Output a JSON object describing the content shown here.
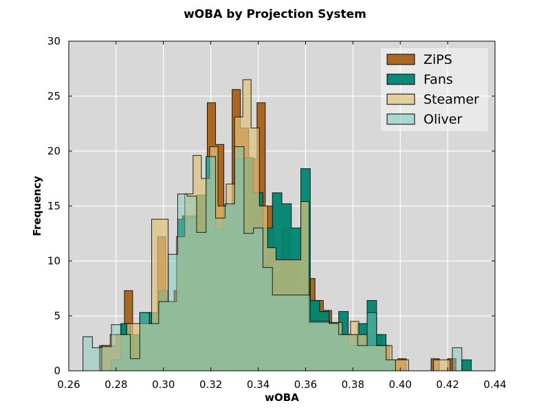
{
  "chart_data": {
    "type": "histogram",
    "title": "wOBA by Projection System",
    "xlabel": "wOBA",
    "ylabel": "Frequency",
    "xlim": [
      0.26,
      0.44
    ],
    "ylim": [
      0,
      30
    ],
    "x_ticks": [
      "0.26",
      "0.28",
      "0.30",
      "0.32",
      "0.34",
      "0.36",
      "0.38",
      "0.40",
      "0.42",
      "0.44"
    ],
    "y_ticks": [
      "0",
      "5",
      "10",
      "15",
      "20",
      "25",
      "30"
    ],
    "grid": true,
    "legend_position": "top-right",
    "background": "#d8d8d8",
    "series": [
      {
        "name": "ZiPS",
        "color": "#a6611a",
        "opacity": 0.95,
        "bins": [
          [
            0.273,
            0.2765,
            2.3
          ],
          [
            0.2765,
            0.28,
            2.3
          ],
          [
            0.28,
            0.2835,
            3.3
          ],
          [
            0.2835,
            0.287,
            7.3
          ],
          [
            0.287,
            0.2905,
            1.0
          ],
          [
            0.2905,
            0.294,
            3.3
          ],
          [
            0.294,
            0.2975,
            4.3
          ],
          [
            0.2975,
            0.301,
            12.2
          ],
          [
            0.301,
            0.3045,
            6.3
          ],
          [
            0.3045,
            0.308,
            7.3
          ],
          [
            0.308,
            0.3115,
            14.1
          ],
          [
            0.3115,
            0.315,
            14.1
          ],
          [
            0.315,
            0.3185,
            15.1
          ],
          [
            0.3185,
            0.322,
            24.4
          ],
          [
            0.322,
            0.3255,
            20.6
          ],
          [
            0.3255,
            0.329,
            12.8
          ],
          [
            0.329,
            0.3325,
            25.6
          ],
          [
            0.3325,
            0.336,
            22.1
          ],
          [
            0.336,
            0.3395,
            19.3
          ],
          [
            0.3395,
            0.343,
            24.4
          ],
          [
            0.343,
            0.3465,
            15.0
          ],
          [
            0.3465,
            0.35,
            8.6
          ],
          [
            0.35,
            0.3535,
            13.0
          ],
          [
            0.3535,
            0.357,
            9.9
          ],
          [
            0.357,
            0.3605,
            7.7
          ],
          [
            0.3605,
            0.364,
            8.4
          ],
          [
            0.364,
            0.3675,
            6.4
          ],
          [
            0.3675,
            0.371,
            5.5
          ],
          [
            0.371,
            0.3745,
            4.3
          ],
          [
            0.3745,
            0.378,
            3.3
          ],
          [
            0.378,
            0.3815,
            3.3
          ],
          [
            0.3815,
            0.385,
            1.4
          ],
          [
            0.385,
            0.3885,
            3.4
          ],
          [
            0.3885,
            0.392,
            3.3
          ],
          [
            0.392,
            0.3955,
            2.3
          ],
          [
            0.3955,
            0.399,
            1.0
          ],
          [
            0.399,
            0.4025,
            1.1
          ],
          [
            0.4025,
            0.406,
            0.0
          ],
          [
            0.406,
            0.4095,
            0.0
          ],
          [
            0.4095,
            0.413,
            0.0
          ],
          [
            0.413,
            0.4165,
            1.1
          ],
          [
            0.4165,
            0.42,
            0.0
          ],
          [
            0.42,
            0.4235,
            1.1
          ]
        ]
      },
      {
        "name": "Fans",
        "color": "#018571",
        "opacity": 0.95,
        "bins": [
          [
            0.278,
            0.282,
            1.0
          ],
          [
            0.282,
            0.286,
            4.3
          ],
          [
            0.286,
            0.29,
            3.3
          ],
          [
            0.29,
            0.294,
            5.3
          ],
          [
            0.294,
            0.298,
            5.3
          ],
          [
            0.298,
            0.302,
            7.3
          ],
          [
            0.302,
            0.306,
            6.3
          ],
          [
            0.306,
            0.31,
            13.8
          ],
          [
            0.31,
            0.314,
            14.0
          ],
          [
            0.314,
            0.318,
            16.0
          ],
          [
            0.318,
            0.322,
            19.5
          ],
          [
            0.322,
            0.326,
            12.9
          ],
          [
            0.326,
            0.33,
            15.1
          ],
          [
            0.33,
            0.334,
            19.3
          ],
          [
            0.334,
            0.338,
            19.4
          ],
          [
            0.338,
            0.342,
            16.2
          ],
          [
            0.342,
            0.346,
            13.0
          ],
          [
            0.346,
            0.35,
            16.2
          ],
          [
            0.35,
            0.354,
            15.2
          ],
          [
            0.354,
            0.358,
            13.0
          ],
          [
            0.358,
            0.362,
            18.4
          ],
          [
            0.362,
            0.366,
            6.4
          ],
          [
            0.366,
            0.37,
            5.4
          ],
          [
            0.37,
            0.374,
            4.4
          ],
          [
            0.374,
            0.378,
            5.4
          ],
          [
            0.378,
            0.382,
            2.3
          ],
          [
            0.382,
            0.386,
            4.3
          ],
          [
            0.386,
            0.39,
            6.4
          ],
          [
            0.39,
            0.394,
            3.3
          ],
          [
            0.394,
            0.398,
            1.0
          ],
          [
            0.398,
            0.402,
            0.0
          ],
          [
            0.402,
            0.406,
            0.0
          ],
          [
            0.406,
            0.41,
            0.0
          ],
          [
            0.41,
            0.414,
            0.0
          ],
          [
            0.414,
            0.418,
            0.0
          ],
          [
            0.418,
            0.422,
            0.0
          ],
          [
            0.422,
            0.426,
            0.0
          ],
          [
            0.426,
            0.43,
            1.0
          ]
        ]
      },
      {
        "name": "Steamer",
        "color": "#dfc27d",
        "opacity": 0.7,
        "bins": [
          [
            0.274,
            0.2775,
            2.3
          ],
          [
            0.2775,
            0.281,
            3.3
          ],
          [
            0.281,
            0.2845,
            3.3
          ],
          [
            0.2845,
            0.288,
            4.3
          ],
          [
            0.288,
            0.2915,
            4.3
          ],
          [
            0.2915,
            0.295,
            4.3
          ],
          [
            0.295,
            0.2985,
            13.8
          ],
          [
            0.2985,
            0.302,
            13.8
          ],
          [
            0.302,
            0.3055,
            6.3
          ],
          [
            0.3055,
            0.309,
            12.2
          ],
          [
            0.309,
            0.3125,
            16.1
          ],
          [
            0.3125,
            0.316,
            19.6
          ],
          [
            0.316,
            0.3195,
            17.5
          ],
          [
            0.3195,
            0.323,
            20.4
          ],
          [
            0.323,
            0.3265,
            15.0
          ],
          [
            0.3265,
            0.33,
            17.0
          ],
          [
            0.33,
            0.3335,
            23.1
          ],
          [
            0.3335,
            0.337,
            26.5
          ],
          [
            0.337,
            0.3405,
            22.1
          ],
          [
            0.3405,
            0.344,
            15.0
          ],
          [
            0.344,
            0.3475,
            11.2
          ],
          [
            0.3475,
            0.351,
            10.1
          ],
          [
            0.351,
            0.3545,
            10.1
          ],
          [
            0.3545,
            0.358,
            10.1
          ],
          [
            0.358,
            0.3615,
            15.4
          ],
          [
            0.3615,
            0.365,
            4.4
          ],
          [
            0.365,
            0.3685,
            4.4
          ],
          [
            0.3685,
            0.372,
            4.4
          ],
          [
            0.372,
            0.3755,
            4.4
          ],
          [
            0.3755,
            0.379,
            3.3
          ],
          [
            0.379,
            0.3825,
            4.5
          ],
          [
            0.3825,
            0.386,
            3.3
          ],
          [
            0.386,
            0.3895,
            2.3
          ],
          [
            0.3895,
            0.393,
            2.3
          ],
          [
            0.393,
            0.3965,
            2.3
          ],
          [
            0.3965,
            0.4,
            1.0
          ],
          [
            0.4,
            0.4035,
            1.0
          ],
          [
            0.4035,
            0.407,
            0.0
          ],
          [
            0.407,
            0.4105,
            0.0
          ],
          [
            0.4105,
            0.414,
            0.0
          ],
          [
            0.414,
            0.4175,
            1.0
          ],
          [
            0.4175,
            0.421,
            1.0
          ]
        ]
      },
      {
        "name": "Oliver",
        "color": "#80cdc1",
        "opacity": 0.45,
        "bins": [
          [
            0.266,
            0.27,
            3.1
          ],
          [
            0.27,
            0.274,
            2.1
          ],
          [
            0.274,
            0.278,
            2.2
          ],
          [
            0.278,
            0.282,
            4.2
          ],
          [
            0.282,
            0.286,
            3.3
          ],
          [
            0.286,
            0.29,
            1.1
          ],
          [
            0.29,
            0.294,
            5.3
          ],
          [
            0.294,
            0.298,
            4.3
          ],
          [
            0.298,
            0.302,
            6.3
          ],
          [
            0.302,
            0.306,
            10.6
          ],
          [
            0.306,
            0.31,
            16.1
          ],
          [
            0.31,
            0.314,
            15.9
          ],
          [
            0.314,
            0.318,
            12.6
          ],
          [
            0.318,
            0.322,
            19.5
          ],
          [
            0.322,
            0.326,
            13.9
          ],
          [
            0.326,
            0.33,
            15.2
          ],
          [
            0.33,
            0.334,
            20.4
          ],
          [
            0.334,
            0.338,
            12.5
          ],
          [
            0.338,
            0.342,
            13.0
          ],
          [
            0.342,
            0.346,
            9.4
          ],
          [
            0.346,
            0.35,
            6.9
          ],
          [
            0.35,
            0.354,
            6.9
          ],
          [
            0.354,
            0.358,
            6.9
          ],
          [
            0.358,
            0.362,
            6.9
          ],
          [
            0.362,
            0.366,
            4.5
          ],
          [
            0.366,
            0.37,
            4.5
          ],
          [
            0.37,
            0.374,
            4.3
          ],
          [
            0.374,
            0.378,
            3.3
          ],
          [
            0.378,
            0.382,
            3.3
          ],
          [
            0.382,
            0.386,
            2.3
          ],
          [
            0.386,
            0.39,
            5.3
          ],
          [
            0.39,
            0.394,
            2.3
          ],
          [
            0.394,
            0.398,
            1.0
          ],
          [
            0.398,
            0.402,
            0.0
          ],
          [
            0.402,
            0.406,
            0.0
          ],
          [
            0.406,
            0.41,
            0.0
          ],
          [
            0.41,
            0.414,
            0.0
          ],
          [
            0.414,
            0.418,
            0.0
          ],
          [
            0.418,
            0.422,
            0.0
          ],
          [
            0.422,
            0.426,
            2.1
          ]
        ]
      }
    ]
  }
}
